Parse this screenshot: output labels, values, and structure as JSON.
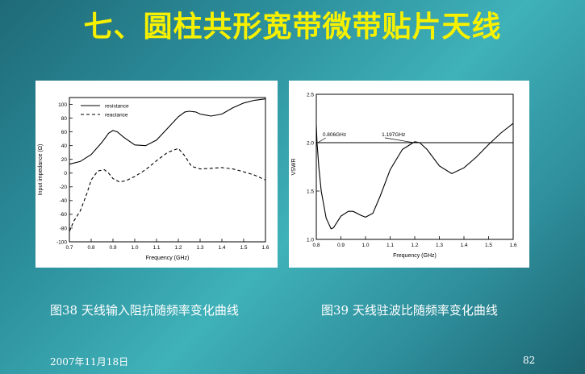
{
  "slide": {
    "title": "七、圆柱共形宽带微带贴片天线",
    "date": "2007年11月18日",
    "page_number": "82"
  },
  "chart_data": [
    {
      "type": "line",
      "caption": "图38 天线输入阻抗随频率变化曲线",
      "xlabel": "Frequency (GHz)",
      "ylabel": "Input impedance (Ω)",
      "xlim": [
        0.7,
        1.6
      ],
      "ylim": [
        -100,
        110
      ],
      "xticks": [
        "0.7",
        "0.8",
        "0.9",
        "1.0",
        "1.1",
        "1.2",
        "1.3",
        "1.4",
        "1.5",
        "1.6"
      ],
      "yticks": [
        "-100",
        "-80",
        "-60",
        "-40",
        "-20",
        "0",
        "20",
        "40",
        "60",
        "80",
        "100"
      ],
      "grid": false,
      "legend": "top-left",
      "series": [
        {
          "name": "resistance",
          "style": "solid",
          "x": [
            0.7,
            0.75,
            0.8,
            0.85,
            0.88,
            0.9,
            0.92,
            0.95,
            1.0,
            1.05,
            1.1,
            1.15,
            1.2,
            1.23,
            1.25,
            1.28,
            1.3,
            1.35,
            1.4,
            1.45,
            1.5,
            1.55,
            1.6
          ],
          "values": [
            13,
            17,
            27,
            45,
            58,
            62,
            60,
            52,
            41,
            40,
            48,
            65,
            82,
            89,
            90,
            89,
            86,
            83,
            86,
            95,
            102,
            106,
            108
          ]
        },
        {
          "name": "reactance",
          "style": "dashed",
          "x": [
            0.7,
            0.72,
            0.75,
            0.78,
            0.8,
            0.83,
            0.86,
            0.88,
            0.9,
            0.93,
            0.96,
            1.0,
            1.05,
            1.1,
            1.15,
            1.2,
            1.23,
            1.26,
            1.3,
            1.35,
            1.4,
            1.45,
            1.5,
            1.55,
            1.6
          ],
          "values": [
            -85,
            -70,
            -55,
            -30,
            -10,
            3,
            5,
            0,
            -8,
            -13,
            -11,
            -5,
            5,
            18,
            30,
            36,
            25,
            10,
            6,
            7,
            8,
            6,
            2,
            -3,
            -10
          ]
        }
      ]
    },
    {
      "type": "line",
      "caption": "图39 天线驻波比随频率变化曲线",
      "xlabel": "Frequency (GHz)",
      "ylabel": "VSWR",
      "xlim": [
        0.8,
        1.6
      ],
      "ylim": [
        1.0,
        2.5
      ],
      "xticks": [
        "0.8",
        "0.9",
        "1.0",
        "1.1",
        "1.2",
        "1.3",
        "1.4",
        "1.5",
        "1.6"
      ],
      "yticks": [
        "1.0",
        "1.5",
        "2.0",
        "2.5"
      ],
      "grid": false,
      "reference_line": 2.0,
      "annotations": [
        "0.806GHz",
        "1.197GHz"
      ],
      "series": [
        {
          "x": [
            0.8,
            0.803,
            0.81,
            0.82,
            0.84,
            0.86,
            0.87,
            0.9,
            0.93,
            0.95,
            0.98,
            1.0,
            1.03,
            1.06,
            1.1,
            1.15,
            1.2,
            1.22,
            1.25,
            1.3,
            1.35,
            1.4,
            1.45,
            1.5,
            1.55,
            1.6
          ],
          "values": [
            2.18,
            2.0,
            1.75,
            1.5,
            1.22,
            1.11,
            1.12,
            1.24,
            1.29,
            1.29,
            1.25,
            1.23,
            1.27,
            1.45,
            1.72,
            1.93,
            2.01,
            2.0,
            1.93,
            1.76,
            1.68,
            1.74,
            1.85,
            1.98,
            2.1,
            2.2
          ]
        }
      ]
    }
  ]
}
